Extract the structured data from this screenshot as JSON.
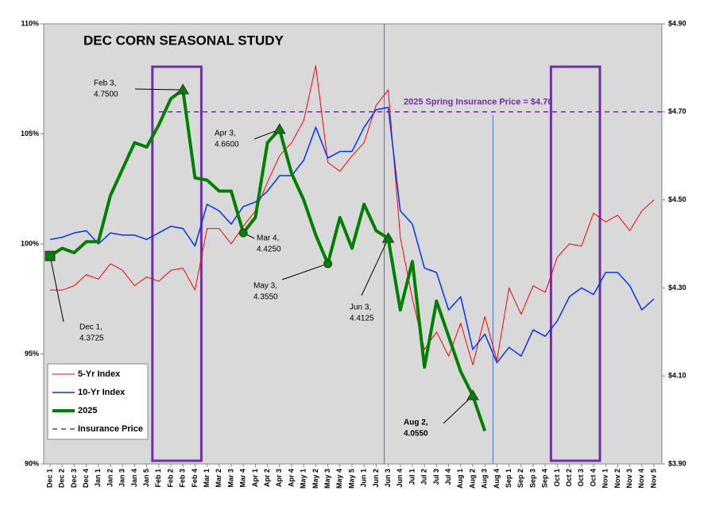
{
  "chart_data": {
    "type": "line",
    "title": "DEC CORN SEASONAL STUDY",
    "categories": [
      "Dec 1",
      "Dec 2",
      "Dec 3",
      "Dec 4",
      "Jan 1",
      "Jan 2",
      "Jan 3",
      "Jan 4",
      "Jan 5",
      "Feb 1",
      "Feb 2",
      "Feb 3",
      "Feb 4",
      "Mar 1",
      "Mar 2",
      "Mar 3",
      "Mar 4",
      "Apr 1",
      "Apr 2",
      "Apr 3",
      "Apr 4",
      "May 1",
      "May 2",
      "May 3",
      "May 4",
      "May 5",
      "Jun 1",
      "Jun 2",
      "Jun 3",
      "Jun 4",
      "Jul 1",
      "Jul 2",
      "Jul 3",
      "Jul 4",
      "Aug 1",
      "Aug 2",
      "Aug 3",
      "Aug 4",
      "Sep 1",
      "Sep 2",
      "Sep 3",
      "Sep 4",
      "Oct 1",
      "Oct 2",
      "Oct 3",
      "Oct 4",
      "Nov 1",
      "Nov 2",
      "Nov 3",
      "Nov 4",
      "Nov 5"
    ],
    "series": [
      {
        "name": "5-Yr Index",
        "color": "#ff0000",
        "width": 1,
        "values": [
          97.9,
          97.9,
          98.1,
          98.6,
          98.4,
          99.1,
          98.8,
          98.1,
          98.5,
          98.3,
          98.8,
          98.9,
          97.9,
          100.7,
          100.7,
          100.0,
          100.8,
          101.5,
          102.8,
          104.0,
          104.6,
          105.6,
          108.1,
          103.7,
          103.3,
          104.0,
          104.6,
          106.3,
          107.0,
          100.3,
          97.5,
          95.2,
          96.0,
          94.9,
          96.4,
          94.5,
          96.7,
          94.7,
          98.0,
          96.8,
          98.1,
          97.8,
          99.4,
          100.0,
          99.9,
          101.4,
          101.0,
          101.3,
          100.6,
          101.5,
          102.0
        ]
      },
      {
        "name": "10-Yr Index",
        "color": "#0033ff",
        "width": 1.5,
        "values": [
          100.2,
          100.3,
          100.5,
          100.6,
          100.0,
          100.5,
          100.4,
          100.4,
          100.2,
          100.5,
          100.8,
          100.7,
          99.9,
          101.8,
          101.5,
          100.9,
          101.7,
          101.9,
          102.4,
          103.1,
          103.1,
          103.8,
          105.3,
          103.9,
          104.2,
          104.2,
          105.3,
          106.1,
          106.2,
          101.5,
          100.9,
          98.9,
          98.7,
          97.0,
          97.6,
          95.2,
          95.9,
          94.6,
          95.3,
          94.9,
          96.1,
          95.8,
          96.5,
          97.6,
          98.0,
          97.7,
          98.7,
          98.7,
          98.1,
          97.0,
          97.5
        ]
      },
      {
        "name": "2025",
        "color": "#008000",
        "width": 4,
        "axis": "y2",
        "values": [
          4.3725,
          4.39,
          4.38,
          4.405,
          4.405,
          4.51,
          4.57,
          4.63,
          4.62,
          4.67,
          4.73,
          4.75,
          4.55,
          4.545,
          4.52,
          4.52,
          4.425,
          4.46,
          4.63,
          4.66,
          4.56,
          4.5,
          4.42,
          4.355,
          4.46,
          4.39,
          4.49,
          4.43,
          4.4125,
          4.25,
          4.36,
          4.12,
          4.27,
          4.19,
          4.11,
          4.055,
          3.975,
          null,
          null,
          null,
          null,
          null,
          null,
          null,
          null,
          null,
          null,
          null,
          null,
          null,
          null
        ]
      }
    ],
    "insurance": {
      "name": "Insurance Price",
      "value": 4.7,
      "label": "2025 Spring Insurance Price = $4.70",
      "color": "#7030a0"
    },
    "annotations": [
      {
        "index": 0,
        "shape": "square",
        "text": [
          "Dec 1,",
          "4.3725"
        ]
      },
      {
        "index": 11,
        "shape": "triangle",
        "text": [
          "Feb 3,",
          "4.7500"
        ]
      },
      {
        "index": 19,
        "shape": "triangle",
        "text": [
          "Apr 3,",
          "4.6600"
        ]
      },
      {
        "index": 16,
        "shape": "circle",
        "text": [
          "Mar 4,",
          "4.4250"
        ]
      },
      {
        "index": 23,
        "shape": "circle",
        "text": [
          "May 3,",
          "4.3550"
        ]
      },
      {
        "index": 28,
        "shape": "triangle",
        "text": [
          "Jun 3,",
          "4.4125"
        ]
      },
      {
        "index": 35,
        "shape": "triangle",
        "text": [
          "Aug 2,",
          "4.0550"
        ]
      }
    ],
    "ylim": [
      90,
      110
    ],
    "yticks": [
      {
        "value": 90,
        "label": "90%"
      },
      {
        "value": 95,
        "label": "95%"
      },
      {
        "value": 100,
        "label": "100%"
      },
      {
        "value": 105,
        "label": "105%"
      },
      {
        "value": 110,
        "label": "110%"
      }
    ],
    "y2lim": [
      3.9,
      4.9
    ],
    "y2ticks": [
      {
        "value": 3.9,
        "label": "$3.90"
      },
      {
        "value": 4.1,
        "label": "$4.10"
      },
      {
        "value": 4.3,
        "label": "$4.30"
      },
      {
        "value": 4.5,
        "label": "$4.50"
      },
      {
        "value": 4.7,
        "label": "$4.70"
      },
      {
        "value": 4.9,
        "label": "$4.90"
      }
    ],
    "grid": false
  }
}
